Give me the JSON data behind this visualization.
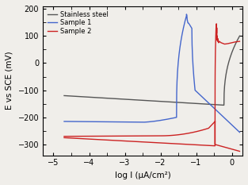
{
  "title": "",
  "xlabel": "log I (μA/cm²)",
  "ylabel": "E vs SCE (mV)",
  "xlim": [
    -5.3,
    0.3
  ],
  "ylim": [
    -340,
    210
  ],
  "xticks": [
    -5,
    -4,
    -3,
    -2,
    -1,
    0
  ],
  "yticks": [
    -300,
    -200,
    -100,
    0,
    100,
    200
  ],
  "legend": [
    "Stainless steel",
    "Sample 1",
    "Sample 2"
  ],
  "colors": {
    "stainless": "#555555",
    "sample1": "#4466cc",
    "sample2": "#cc2222"
  },
  "background": "#f0eeea"
}
